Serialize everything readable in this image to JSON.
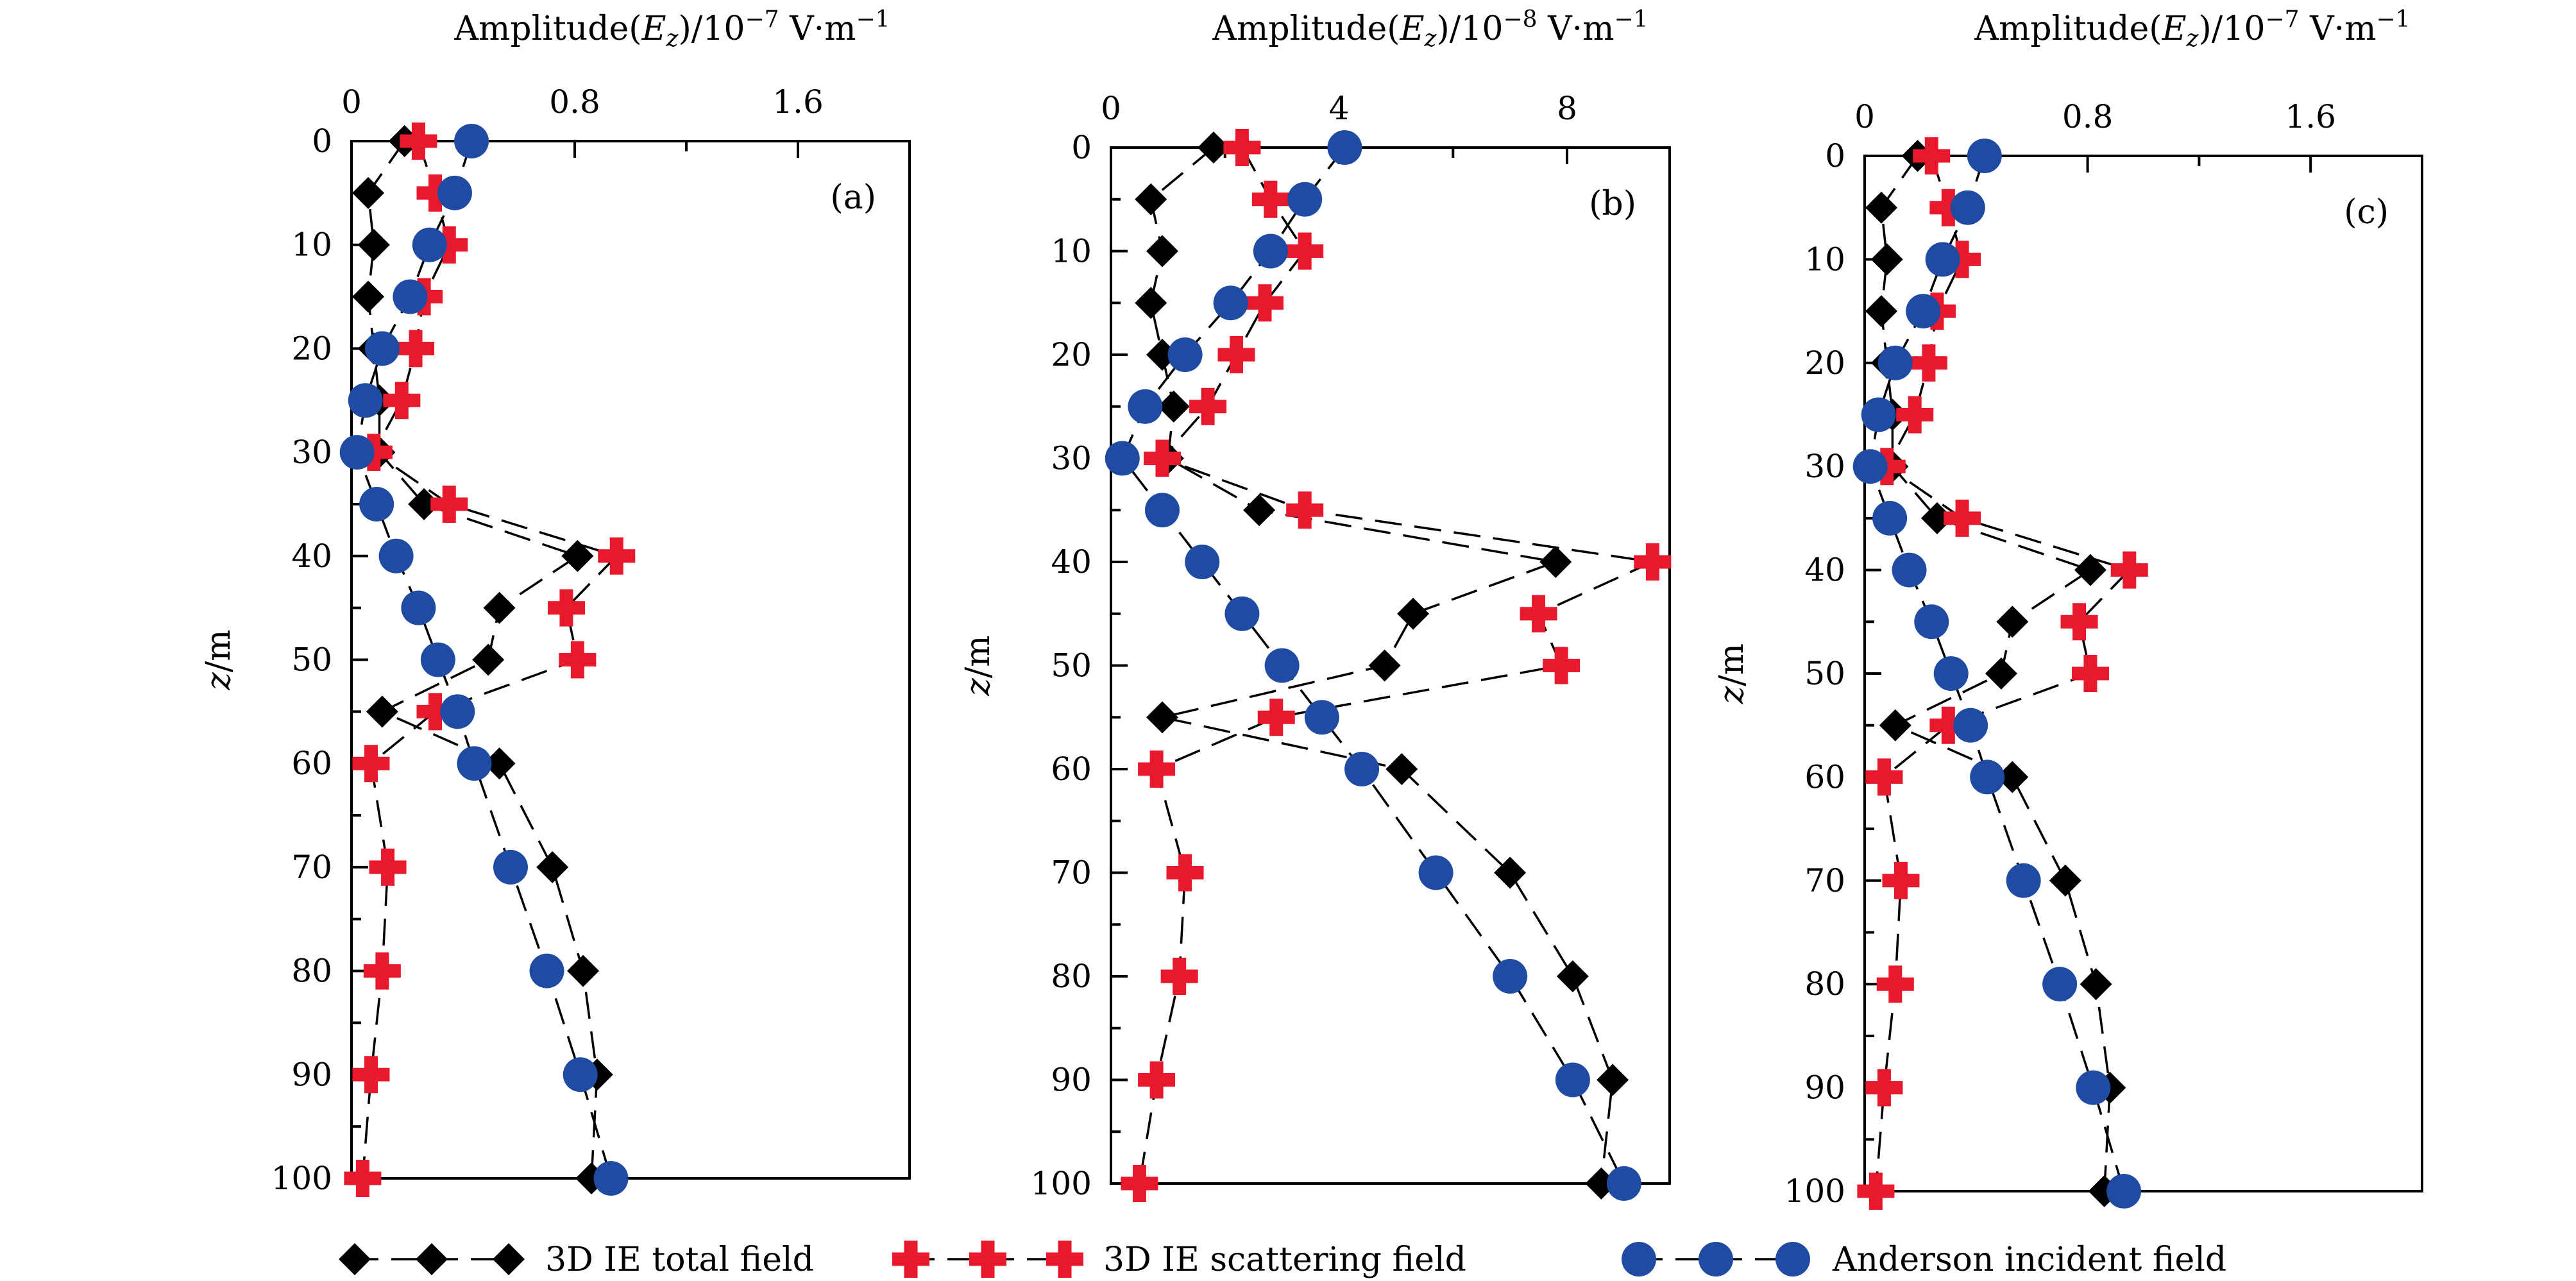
{
  "colors": {
    "total": "#000000",
    "scattering": "#e8192c",
    "incident": "#1f4ba3",
    "axis": "#000000"
  },
  "chart_data": [
    {
      "type": "scatter",
      "panel_label": "(a)",
      "xlabel": "Amplitude(",
      "xlabel_var": "E",
      "xlabel_sub": "z",
      "xlabel_unit": ")/10",
      "xlabel_exp": "−7",
      "xlabel_tail": " V·m",
      "xlabel_tail_exp": "−1",
      "ylabel_var": "z",
      "ylabel_unit": "/m",
      "xlim": [
        0,
        2.0
      ],
      "ylim": [
        0,
        100
      ],
      "y_inverted": true,
      "xticks": [
        0,
        0.8,
        1.6
      ],
      "xtick_labels": [
        "0",
        "0.8",
        "1.6"
      ],
      "xtick_minor": [
        0.4,
        1.2
      ],
      "yticks": [
        0,
        10,
        20,
        30,
        40,
        50,
        60,
        70,
        80,
        90,
        100
      ],
      "ytick_labels": [
        "0",
        "10",
        "20",
        "30",
        "40",
        "50",
        "60",
        "70",
        "80",
        "90",
        "100"
      ],
      "grid": false,
      "series": [
        {
          "name": "3D IE total field",
          "marker": "diamond",
          "z": [
            0,
            5,
            10,
            15,
            20,
            25,
            30,
            35,
            40,
            45,
            50,
            55,
            60,
            70,
            80,
            90,
            100
          ],
          "values": [
            0.19,
            0.06,
            0.08,
            0.06,
            0.08,
            0.1,
            0.1,
            0.26,
            0.81,
            0.53,
            0.49,
            0.11,
            0.53,
            0.72,
            0.83,
            0.88,
            0.86
          ]
        },
        {
          "name": "3D IE scattering field",
          "marker": "cross",
          "z": [
            0,
            5,
            10,
            15,
            20,
            25,
            30,
            35,
            40,
            45,
            50,
            55,
            60,
            70,
            80,
            90,
            100
          ],
          "values": [
            0.24,
            0.3,
            0.35,
            0.26,
            0.23,
            0.18,
            0.08,
            0.35,
            0.95,
            0.77,
            0.81,
            0.3,
            0.07,
            0.13,
            0.11,
            0.07,
            0.04
          ]
        },
        {
          "name": "Anderson incident field",
          "marker": "circle",
          "z": [
            0,
            5,
            10,
            15,
            20,
            25,
            30,
            35,
            40,
            45,
            50,
            55,
            60,
            70,
            80,
            90,
            100
          ],
          "values": [
            0.43,
            0.37,
            0.28,
            0.21,
            0.11,
            0.05,
            0.02,
            0.09,
            0.16,
            0.24,
            0.31,
            0.38,
            0.44,
            0.57,
            0.7,
            0.82,
            0.93
          ]
        }
      ]
    },
    {
      "type": "scatter",
      "panel_label": "(b)",
      "xlabel": "Amplitude(",
      "xlabel_var": "E",
      "xlabel_sub": "z",
      "xlabel_unit": ")/10",
      "xlabel_exp": "−8",
      "xlabel_tail": " V·m",
      "xlabel_tail_exp": "−1",
      "ylabel_var": "z",
      "ylabel_unit": "/m",
      "xlim": [
        0,
        9.8
      ],
      "ylim": [
        0,
        100
      ],
      "y_inverted": true,
      "xticks": [
        0,
        4,
        8
      ],
      "xtick_labels": [
        "0",
        "4",
        "8"
      ],
      "xtick_minor": [
        2,
        6
      ],
      "yticks": [
        0,
        10,
        20,
        30,
        40,
        50,
        60,
        70,
        80,
        90,
        100
      ],
      "ytick_labels": [
        "0",
        "10",
        "20",
        "30",
        "40",
        "50",
        "60",
        "70",
        "80",
        "90",
        "100"
      ],
      "grid": false,
      "series": [
        {
          "name": "3D IE total field",
          "marker": "diamond",
          "z": [
            0,
            5,
            10,
            15,
            20,
            25,
            30,
            35,
            40,
            45,
            50,
            55,
            60,
            70,
            80,
            90,
            100
          ],
          "values": [
            1.8,
            0.7,
            0.9,
            0.7,
            0.9,
            1.1,
            1.0,
            2.6,
            7.8,
            5.3,
            4.8,
            0.9,
            5.1,
            7.0,
            8.1,
            8.8,
            8.6
          ]
        },
        {
          "name": "3D IE scattering field",
          "marker": "cross",
          "z": [
            0,
            5,
            10,
            15,
            20,
            25,
            30,
            35,
            40,
            45,
            50,
            55,
            60,
            70,
            80,
            90,
            100
          ],
          "values": [
            2.3,
            2.8,
            3.4,
            2.7,
            2.2,
            1.7,
            0.9,
            3.4,
            9.5,
            7.5,
            7.9,
            2.9,
            0.8,
            1.3,
            1.2,
            0.8,
            0.5
          ]
        },
        {
          "name": "Anderson incident field",
          "marker": "circle",
          "z": [
            0,
            5,
            10,
            15,
            20,
            25,
            30,
            35,
            40,
            45,
            50,
            55,
            60,
            70,
            80,
            90,
            100
          ],
          "values": [
            4.1,
            3.4,
            2.8,
            2.1,
            1.3,
            0.6,
            0.2,
            0.9,
            1.6,
            2.3,
            3.0,
            3.7,
            4.4,
            5.7,
            7.0,
            8.1,
            9.0
          ]
        }
      ]
    },
    {
      "type": "scatter",
      "panel_label": "(c)",
      "xlabel": "Amplitude(",
      "xlabel_var": "E",
      "xlabel_sub": "z",
      "xlabel_unit": ")/10",
      "xlabel_exp": "−7",
      "xlabel_tail": " V·m",
      "xlabel_tail_exp": "−1",
      "ylabel_var": "z",
      "ylabel_unit": "/m",
      "xlim": [
        0,
        2.0
      ],
      "ylim": [
        0,
        100
      ],
      "y_inverted": true,
      "xticks": [
        0,
        0.8,
        1.6
      ],
      "xtick_labels": [
        "0",
        "0.8",
        "1.6"
      ],
      "xtick_minor": [
        0.4,
        1.2
      ],
      "yticks": [
        0,
        10,
        20,
        30,
        40,
        50,
        60,
        70,
        80,
        90,
        100
      ],
      "ytick_labels": [
        "0",
        "10",
        "20",
        "30",
        "40",
        "50",
        "60",
        "70",
        "80",
        "90",
        "100"
      ],
      "grid": false,
      "series": [
        {
          "name": "3D IE total field",
          "marker": "diamond",
          "z": [
            0,
            5,
            10,
            15,
            20,
            25,
            30,
            35,
            40,
            45,
            50,
            55,
            60,
            70,
            80,
            90,
            100
          ],
          "values": [
            0.19,
            0.06,
            0.08,
            0.06,
            0.08,
            0.1,
            0.1,
            0.26,
            0.81,
            0.53,
            0.49,
            0.11,
            0.53,
            0.72,
            0.83,
            0.88,
            0.86
          ]
        },
        {
          "name": "3D IE scattering field",
          "marker": "cross",
          "z": [
            0,
            5,
            10,
            15,
            20,
            25,
            30,
            35,
            40,
            45,
            50,
            55,
            60,
            70,
            80,
            90,
            100
          ],
          "values": [
            0.24,
            0.3,
            0.35,
            0.26,
            0.23,
            0.18,
            0.08,
            0.35,
            0.95,
            0.77,
            0.81,
            0.3,
            0.07,
            0.13,
            0.11,
            0.07,
            0.04
          ]
        },
        {
          "name": "Anderson incident field",
          "marker": "circle",
          "z": [
            0,
            5,
            10,
            15,
            20,
            25,
            30,
            35,
            40,
            45,
            50,
            55,
            60,
            70,
            80,
            90,
            100
          ],
          "values": [
            0.43,
            0.37,
            0.28,
            0.21,
            0.11,
            0.05,
            0.02,
            0.09,
            0.16,
            0.24,
            0.31,
            0.38,
            0.44,
            0.57,
            0.7,
            0.82,
            0.93
          ]
        }
      ]
    }
  ],
  "legend": {
    "placement": "bottom",
    "items": [
      {
        "label": "3D IE total field",
        "marker": "diamond"
      },
      {
        "label": "3D IE scattering field",
        "marker": "cross"
      },
      {
        "label": "Anderson incident field",
        "marker": "circle"
      }
    ]
  }
}
